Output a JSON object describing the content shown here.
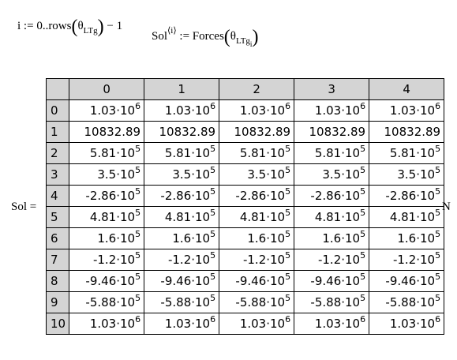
{
  "equations": {
    "range": {
      "var": "i",
      "assign": ":=",
      "start": "0",
      "dots": "..",
      "func": "rows",
      "theta": "θ",
      "sub": "LTg",
      "tail": "− 1"
    },
    "sol": {
      "name": "Sol",
      "super": "⟨i⟩",
      "assign": ":=",
      "func": "Forces",
      "theta": "θ",
      "sub": "LTg",
      "subsub": "i"
    }
  },
  "result": {
    "label": "Sol =",
    "unit": "N",
    "col_headers": [
      "0",
      "1",
      "2",
      "3",
      "4"
    ],
    "row_headers": [
      "0",
      "1",
      "2",
      "3",
      "4",
      "5",
      "6",
      "7",
      "8",
      "9",
      "10"
    ],
    "rows": [
      {
        "m": "1.03·10",
        "e": "6"
      },
      {
        "m": "10832.89",
        "e": ""
      },
      {
        "m": "5.81·10",
        "e": "5"
      },
      {
        "m": "3.5·10",
        "e": "5"
      },
      {
        "m": "-2.86·10",
        "e": "5"
      },
      {
        "m": "4.81·10",
        "e": "5"
      },
      {
        "m": "1.6·10",
        "e": "5"
      },
      {
        "m": "-1.2·10",
        "e": "5"
      },
      {
        "m": "-9.46·10",
        "e": "5"
      },
      {
        "m": "-5.88·10",
        "e": "5"
      },
      {
        "m": "1.03·10",
        "e": "6"
      }
    ]
  }
}
